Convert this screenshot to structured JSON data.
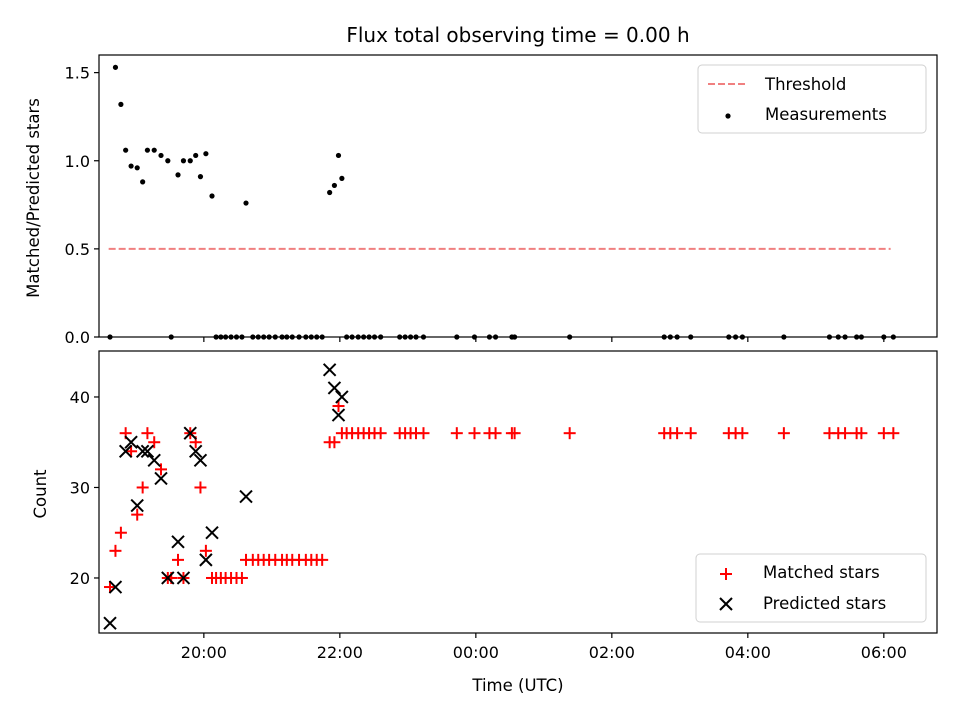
{
  "chart_data": [
    {
      "type": "scatter",
      "title": "Flux total observing time = 0.00 h",
      "ylabel": "Matched/Predicted stars",
      "xlabel": "",
      "ylim": [
        0,
        1.6
      ],
      "yticks": [
        0.0,
        0.5,
        1.0,
        1.5
      ],
      "ytick_labels": [
        "0.0",
        "0.5",
        "1.0",
        "1.5"
      ],
      "xlim": [
        18.458,
        30.782
      ],
      "xticks": [
        20,
        22,
        24,
        26,
        28,
        30
      ],
      "legend_position": "upper-right",
      "threshold": {
        "name": "Threshold",
        "value": 0.5,
        "x_start": 18.6,
        "x_end": 30.1,
        "color": "#f08080"
      },
      "series": [
        {
          "name": "Measurements",
          "marker": "dot",
          "color": "#000000",
          "points": [
            [
              18.62,
              0
            ],
            [
              18.7,
              1.53
            ],
            [
              18.78,
              1.32
            ],
            [
              18.85,
              1.06
            ],
            [
              18.93,
              0.97
            ],
            [
              19.02,
              0.96
            ],
            [
              19.1,
              0.88
            ],
            [
              19.17,
              1.06
            ],
            [
              19.27,
              1.06
            ],
            [
              19.37,
              1.03
            ],
            [
              19.47,
              1.0
            ],
            [
              19.52,
              0
            ],
            [
              19.62,
              0.92
            ],
            [
              19.7,
              1.0
            ],
            [
              19.8,
              1.0
            ],
            [
              19.88,
              1.03
            ],
            [
              19.95,
              0.91
            ],
            [
              20.03,
              1.04
            ],
            [
              20.12,
              0.8
            ],
            [
              20.18,
              0
            ],
            [
              20.25,
              0
            ],
            [
              20.32,
              0
            ],
            [
              20.4,
              0
            ],
            [
              20.48,
              0
            ],
            [
              20.56,
              0
            ],
            [
              20.62,
              0.76
            ],
            [
              20.72,
              0
            ],
            [
              20.8,
              0
            ],
            [
              20.88,
              0
            ],
            [
              20.96,
              0
            ],
            [
              21.05,
              0
            ],
            [
              21.15,
              0
            ],
            [
              21.22,
              0
            ],
            [
              21.3,
              0
            ],
            [
              21.4,
              0
            ],
            [
              21.5,
              0
            ],
            [
              21.58,
              0
            ],
            [
              21.66,
              0
            ],
            [
              21.74,
              0
            ],
            [
              21.85,
              0.82
            ],
            [
              21.92,
              0.86
            ],
            [
              21.98,
              1.03
            ],
            [
              22.03,
              0.9
            ],
            [
              22.1,
              0
            ],
            [
              22.18,
              0
            ],
            [
              22.27,
              0
            ],
            [
              22.35,
              0
            ],
            [
              22.43,
              0
            ],
            [
              22.51,
              0
            ],
            [
              22.6,
              0
            ],
            [
              22.88,
              0
            ],
            [
              22.96,
              0
            ],
            [
              23.04,
              0
            ],
            [
              23.12,
              0
            ],
            [
              23.23,
              0
            ],
            [
              23.72,
              0
            ],
            [
              23.98,
              0
            ],
            [
              24.2,
              0
            ],
            [
              24.29,
              0
            ],
            [
              24.53,
              0
            ],
            [
              24.57,
              0
            ],
            [
              25.38,
              0
            ],
            [
              26.77,
              0
            ],
            [
              26.86,
              0
            ],
            [
              26.96,
              0
            ],
            [
              27.16,
              0
            ],
            [
              27.72,
              0
            ],
            [
              27.82,
              0
            ],
            [
              27.92,
              0
            ],
            [
              28.53,
              0
            ],
            [
              29.2,
              0
            ],
            [
              29.33,
              0
            ],
            [
              29.43,
              0
            ],
            [
              29.6,
              0
            ],
            [
              29.67,
              0
            ],
            [
              30.0,
              0
            ],
            [
              30.14,
              0
            ]
          ]
        }
      ]
    },
    {
      "type": "scatter",
      "xlabel": "Time (UTC)",
      "ylabel": "Count",
      "ylim": [
        13.92,
        45.08
      ],
      "yticks": [
        20,
        30,
        40
      ],
      "ytick_labels": [
        "20",
        "30",
        "40"
      ],
      "xlim": [
        18.458,
        30.782
      ],
      "xticks": [
        20,
        22,
        24,
        26,
        28,
        30
      ],
      "xtick_labels": [
        "20:00",
        "22:00",
        "00:00",
        "02:00",
        "04:00",
        "06:00"
      ],
      "legend_position": "lower-right",
      "series": [
        {
          "name": "Matched stars",
          "marker": "plus",
          "color": "#ff0000",
          "points": [
            [
              18.62,
              19
            ],
            [
              18.7,
              23
            ],
            [
              18.78,
              25
            ],
            [
              18.85,
              36
            ],
            [
              18.93,
              34
            ],
            [
              19.02,
              27
            ],
            [
              19.1,
              30
            ],
            [
              19.17,
              36
            ],
            [
              19.27,
              35
            ],
            [
              19.37,
              32
            ],
            [
              19.47,
              20
            ],
            [
              19.52,
              20
            ],
            [
              19.62,
              22
            ],
            [
              19.7,
              20
            ],
            [
              19.8,
              36
            ],
            [
              19.88,
              35
            ],
            [
              19.95,
              30
            ],
            [
              20.03,
              23
            ],
            [
              20.12,
              20
            ],
            [
              20.18,
              20
            ],
            [
              20.25,
              20
            ],
            [
              20.32,
              20
            ],
            [
              20.4,
              20
            ],
            [
              20.48,
              20
            ],
            [
              20.56,
              20
            ],
            [
              20.62,
              22
            ],
            [
              20.72,
              22
            ],
            [
              20.8,
              22
            ],
            [
              20.88,
              22
            ],
            [
              20.96,
              22
            ],
            [
              21.05,
              22
            ],
            [
              21.15,
              22
            ],
            [
              21.22,
              22
            ],
            [
              21.3,
              22
            ],
            [
              21.4,
              22
            ],
            [
              21.5,
              22
            ],
            [
              21.58,
              22
            ],
            [
              21.66,
              22
            ],
            [
              21.74,
              22
            ],
            [
              21.85,
              35
            ],
            [
              21.92,
              35
            ],
            [
              21.98,
              39
            ],
            [
              22.03,
              36
            ],
            [
              22.1,
              36
            ],
            [
              22.18,
              36
            ],
            [
              22.27,
              36
            ],
            [
              22.35,
              36
            ],
            [
              22.43,
              36
            ],
            [
              22.51,
              36
            ],
            [
              22.6,
              36
            ],
            [
              22.88,
              36
            ],
            [
              22.96,
              36
            ],
            [
              23.04,
              36
            ],
            [
              23.12,
              36
            ],
            [
              23.23,
              36
            ],
            [
              23.72,
              36
            ],
            [
              23.98,
              36
            ],
            [
              24.2,
              36
            ],
            [
              24.29,
              36
            ],
            [
              24.53,
              36
            ],
            [
              24.57,
              36
            ],
            [
              25.38,
              36
            ],
            [
              26.77,
              36
            ],
            [
              26.86,
              36
            ],
            [
              26.96,
              36
            ],
            [
              27.16,
              36
            ],
            [
              27.72,
              36
            ],
            [
              27.82,
              36
            ],
            [
              27.92,
              36
            ],
            [
              28.53,
              36
            ],
            [
              29.2,
              36
            ],
            [
              29.33,
              36
            ],
            [
              29.43,
              36
            ],
            [
              29.6,
              36
            ],
            [
              29.67,
              36
            ],
            [
              30.0,
              36
            ],
            [
              30.14,
              36
            ]
          ]
        },
        {
          "name": "Predicted stars",
          "marker": "x",
          "color": "#000000",
          "points": [
            [
              18.62,
              15
            ],
            [
              18.7,
              19
            ],
            [
              18.85,
              34
            ],
            [
              18.93,
              35
            ],
            [
              19.02,
              28
            ],
            [
              19.1,
              34
            ],
            [
              19.17,
              34
            ],
            [
              19.27,
              33
            ],
            [
              19.37,
              31
            ],
            [
              19.47,
              20
            ],
            [
              19.62,
              24
            ],
            [
              19.7,
              20
            ],
            [
              19.8,
              36
            ],
            [
              19.88,
              34
            ],
            [
              19.95,
              33
            ],
            [
              20.03,
              22
            ],
            [
              20.12,
              25
            ],
            [
              20.62,
              29
            ],
            [
              21.85,
              43
            ],
            [
              21.92,
              41
            ],
            [
              21.98,
              38
            ],
            [
              22.03,
              40
            ]
          ]
        }
      ]
    }
  ]
}
